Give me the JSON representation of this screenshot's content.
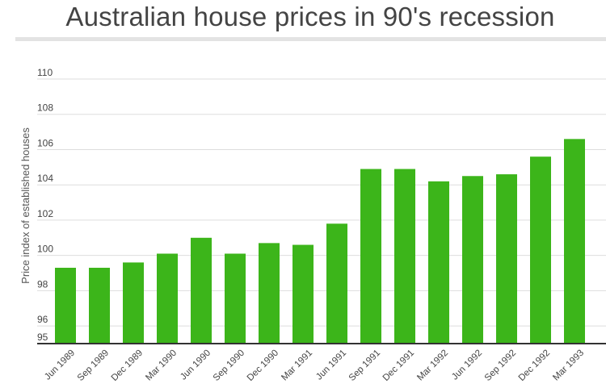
{
  "chart_data": {
    "type": "bar",
    "title": "Australian house prices in 90's recession",
    "xlabel": "",
    "ylabel": "Price index of established houses",
    "ylim": [
      95,
      110
    ],
    "yticks": [
      95,
      96,
      98,
      100,
      102,
      104,
      106,
      108,
      110
    ],
    "grid": true,
    "categories": [
      "Jun 1989",
      "Sep 1989",
      "Dec 1989",
      "Mar 1990",
      "Jun 1990",
      "Sep 1990",
      "Dec 1990",
      "Mar 1991",
      "Jun 1991",
      "Sep 1991",
      "Dec 1991",
      "Mar 1992",
      "Jun 1992",
      "Sep 1992",
      "Dec 1992",
      "Mar 1993"
    ],
    "values": [
      99.3,
      99.3,
      99.6,
      100.1,
      101.0,
      100.1,
      100.7,
      100.6,
      101.8,
      104.9,
      104.9,
      104.2,
      104.5,
      104.6,
      105.6,
      106.6
    ],
    "bar_color": "#3cb51a"
  }
}
